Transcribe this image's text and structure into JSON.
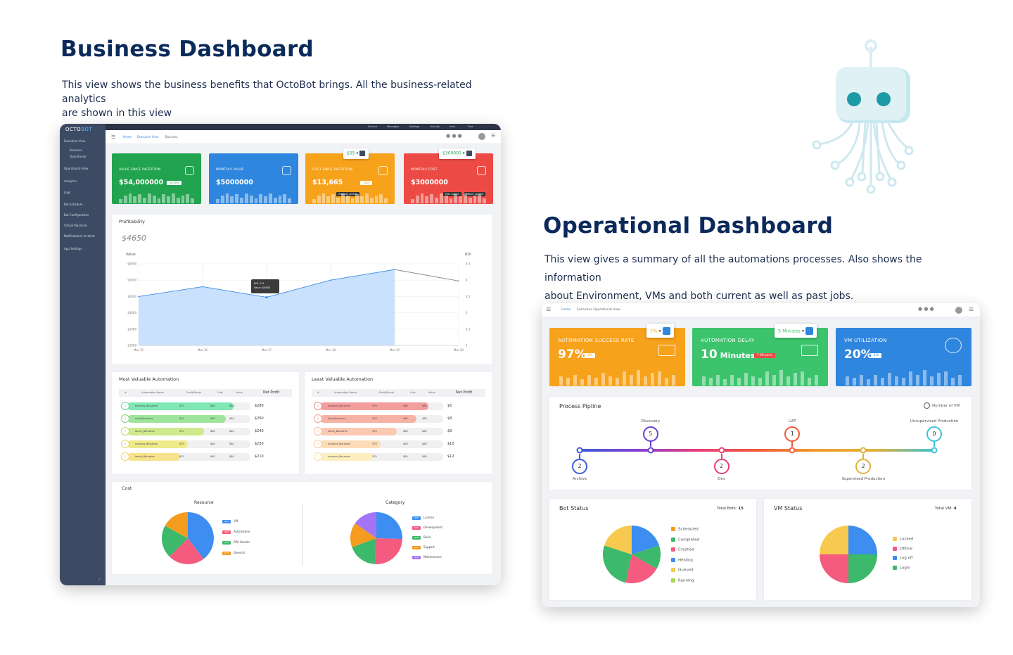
{
  "business": {
    "heading": "Business Dashboard",
    "description_line1": "This view shows the business benefits that OctoBot brings. All the business-related analytics",
    "description_line2": "are shown in this view"
  },
  "operational": {
    "heading": "Operational Dashboard",
    "description_line1": "This view gives a summary of all the automations processes. Also shows the information",
    "description_line2": "about Environment, VMs and both current as well as past jobs."
  },
  "app": {
    "logo_left": "OCTO",
    "logo_right": "BOT",
    "sidebar": [
      {
        "label": "Executive View"
      },
      {
        "label": "Business"
      },
      {
        "label": "Operational"
      },
      {
        "label": "Operational View"
      },
      {
        "label": "Analytics"
      },
      {
        "label": "Logs"
      },
      {
        "label": "Bot Schedule"
      },
      {
        "label": "Bot Configuration"
      },
      {
        "label": "Virtual Machines"
      },
      {
        "label": "Notifications/ Incident"
      },
      {
        "label": "App Settings"
      }
    ],
    "topbar": [
      "Service",
      "Messages",
      "Settings",
      "Activity",
      "Help",
      "Find"
    ],
    "breadcrumb": [
      "Home",
      "Executive View",
      "Business"
    ]
  },
  "biz_kpis": [
    {
      "label": "VALUE SINCE INCEPTION",
      "value": "$54,000000",
      "color": "#22a34f",
      "badge": "20.55%",
      "icon": "chart-up-icon"
    },
    {
      "label": "MONTHLY VALUE",
      "value": "$5000000",
      "color": "#2f86de",
      "icon": "upload-chart-icon"
    },
    {
      "label": "COST SINCE INCEPTION",
      "value": "$13,665",
      "color": "#f7a21b",
      "badge": "2469",
      "popup": "$55",
      "tooltip": "Instantt -$2500",
      "icon": "dollar-icon"
    },
    {
      "label": "MONTHLY COST",
      "value": "$3000000",
      "color": "#ec4b45",
      "popup": "$300000",
      "tooltip": "March -$2500",
      "tooltip2": "Feb -$2500",
      "icon": "cost-icon"
    }
  ],
  "profitability": {
    "title": "Profitability",
    "amount": "$4650",
    "left_axis": "Value",
    "right_axis": "ROI",
    "tooltip_line1": "ROI: 2.5",
    "tooltip_line2": "Value: $4800"
  },
  "chart_data": {
    "type": "area",
    "categories": [
      "Mar 15",
      "Mar 16",
      "Mar 17",
      "Mar 18",
      "Mar 19",
      "Mar 20"
    ],
    "y_ticks": [
      "$6000",
      "$5000",
      "$4000",
      "$3000",
      "$2000",
      "$1000"
    ],
    "y2_ticks": [
      "4.5",
      "4",
      "3.5",
      "3",
      "2.5",
      "2"
    ],
    "ylim": [
      1000,
      6000
    ],
    "series": [
      {
        "values": [
          4000,
          4600,
          3950,
          5000,
          5650,
          4950
        ]
      }
    ]
  },
  "most_valuable": {
    "title": "Most Valuable Automation",
    "headers": [
      "#",
      "Automation Name",
      "Profit/Month",
      "Cost",
      "Value",
      "Net Profit"
    ],
    "rows": [
      {
        "n": "1",
        "name": "Invoices_Bot.atmx",
        "pm": "$70",
        "cost": "$80",
        "value": "$80",
        "net": "$280",
        "fill": 0.86,
        "color": "#7ee8b4",
        "ring": "#63d49c"
      },
      {
        "n": "2",
        "name": "mail_Bot.atmx",
        "pm": "$70",
        "cost": "$80",
        "value": "$80",
        "net": "$260",
        "fill": 0.8,
        "color": "#9ee59b",
        "ring": "#86d37f"
      },
      {
        "n": "3",
        "name": "lorem_Bot.atmx",
        "pm": "$70",
        "cost": "$80",
        "value": "$80",
        "net": "$240",
        "fill": 0.62,
        "color": "#cfea8d",
        "ring": "#b9da6d"
      },
      {
        "n": "4",
        "name": "Invoices_Bot.atmx",
        "pm": "$70",
        "cost": "$80",
        "value": "$80",
        "net": "$230",
        "fill": 0.49,
        "color": "#eeea8a",
        "ring": "#e1d85c"
      },
      {
        "n": "5",
        "name": "lorem_Bot.atmx",
        "pm": "$70",
        "cost": "$80",
        "value": "$80",
        "net": "$210",
        "fill": 0.43,
        "color": "#f6e28c",
        "ring": "#ead26c"
      }
    ]
  },
  "least_valuable": {
    "title": "Least Valuable Automation",
    "headers": [
      "#",
      "Automation Name",
      "Profit/Month",
      "Cost",
      "Value",
      "Net Profit"
    ],
    "rows": [
      {
        "n": "1",
        "name": "Invoices_Bot.atmx",
        "pm": "$70",
        "cost": "$80",
        "value": "$80",
        "net": "$5",
        "fill": 0.88,
        "color": "#f49d9d",
        "ring": "#ef8a8a"
      },
      {
        "n": "2",
        "name": "mail_Bot.atmx",
        "pm": "$70",
        "cost": "$80",
        "value": "$80",
        "net": "$8",
        "fill": 0.78,
        "color": "#f7b2a6",
        "ring": "#f29f92"
      },
      {
        "n": "3",
        "name": "lorem_Bot.atmx",
        "pm": "$70",
        "cost": "$80",
        "value": "$80",
        "net": "$9",
        "fill": 0.62,
        "color": "#fbc9b1",
        "ring": "#f6b698"
      },
      {
        "n": "4",
        "name": "Invoices_Bot.atmx",
        "pm": "$70",
        "cost": "$80",
        "value": "$80",
        "net": "$10",
        "fill": 0.49,
        "color": "#fddcb8",
        "ring": "#f8c99a"
      },
      {
        "n": "5",
        "name": "Invoices_Bot.atmx",
        "pm": "$70",
        "cost": "$80",
        "value": "$80",
        "net": "$12",
        "fill": 0.43,
        "color": "#fdeec0",
        "ring": "#f5df9e"
      }
    ]
  },
  "cost": {
    "title": "Cost",
    "resource": {
      "title": "Resource",
      "slices": [
        {
          "label": "VM",
          "badge": "$35",
          "value": 35,
          "color": "#3d8ef0"
        },
        {
          "label": "Automation",
          "badge": "$20",
          "value": 20,
          "color": "#f45b7e"
        },
        {
          "label": "RPA Vendor",
          "badge": "$18",
          "value": 18,
          "color": "#3cb96a"
        },
        {
          "label": "General",
          "badge": "$15",
          "value": 15,
          "color": "#f59b1e"
        }
      ]
    },
    "category": {
      "title": "Category",
      "slices": [
        {
          "label": "License",
          "badge": "$25",
          "value": 25,
          "color": "#3d8ef0"
        },
        {
          "label": "Development",
          "badge": "$25",
          "value": 25,
          "color": "#f45b7e"
        },
        {
          "label": "Build",
          "badge": "$18",
          "value": 18,
          "color": "#3cb96a"
        },
        {
          "label": "Support",
          "badge": "$15",
          "value": 15,
          "color": "#f59b1e"
        },
        {
          "label": "Maintenance",
          "badge": "$15",
          "value": 15,
          "color": "#a374f5"
        }
      ]
    }
  },
  "ops": {
    "breadcrumb": [
      "Home",
      "Executive Operational View"
    ],
    "kpis": [
      {
        "label": "AUTOMATION SUCCESS RATE",
        "value": "97%",
        "badge": "2%",
        "popup": "7%",
        "color": "#f7a21b",
        "icon": "success-monitor-icon"
      },
      {
        "label": "AUTOMATION DELAY",
        "value": "10",
        "unit": "Minutes",
        "badge": "7 Minutes",
        "popup": "5 Minutes",
        "color": "#3cc46d",
        "icon": "trend-down-icon"
      },
      {
        "label": "VM UTILIZATION",
        "value": "20%",
        "badge": "1%",
        "color": "#2f86de",
        "icon": "speedometer-icon"
      }
    ],
    "pipeline": {
      "title": "Process Pipline",
      "vm_label": "Number of VM",
      "stages": [
        {
          "name": "Archive",
          "count": "2",
          "color": "#3b5bd9",
          "pos": 0.0,
          "side": "below"
        },
        {
          "name": "Discovery",
          "count": "5",
          "color": "#6a3fd1",
          "pos": 0.2,
          "side": "above"
        },
        {
          "name": "Dev",
          "count": "2",
          "color": "#e83e7a",
          "pos": 0.4,
          "side": "below"
        },
        {
          "name": "UAT",
          "count": "1",
          "color": "#ef5a3a",
          "pos": 0.6,
          "side": "above"
        },
        {
          "name": "Supervised Production",
          "count": "2",
          "color": "#e2b13a",
          "pos": 0.8,
          "side": "below"
        },
        {
          "name": "Unsupervised Production",
          "count": "0",
          "color": "#3cc3d6",
          "pos": 1.0,
          "side": "above"
        }
      ]
    },
    "bot_status": {
      "title": "Bot Status",
      "total_label": "Total Bots:",
      "total": "15",
      "slices": [
        {
          "label": "Scheduled",
          "value": 3,
          "color": "#3d8ef0"
        },
        {
          "label": "Completed",
          "value": 2,
          "color": "#3cb96a"
        },
        {
          "label": "Crashed",
          "value": 3,
          "color": "#f45b7e"
        },
        {
          "label": "Healing",
          "value": 4,
          "color": "#3cb96a"
        },
        {
          "label": "Queued",
          "value": 3,
          "color": "#f8c94f"
        },
        {
          "label": "Running",
          "value": 0,
          "color": "#a8d94a"
        }
      ],
      "legend_colors": [
        "#f59b1e",
        "#3cb96a",
        "#f45b7e",
        "#3d8ef0",
        "#f8c94f",
        "#a8d94a"
      ]
    },
    "vm_status": {
      "title": "VM Status",
      "total_label": "Total VM:",
      "total": "4",
      "slices": [
        {
          "label": "Locked",
          "value": 1,
          "color": "#3d8ef0"
        },
        {
          "label": "Offline",
          "value": 1,
          "color": "#3cb96a"
        },
        {
          "label": "Log off",
          "value": 1,
          "color": "#f45b7e"
        },
        {
          "label": "Login",
          "value": 1,
          "color": "#f8c94f"
        }
      ],
      "legend_colors": [
        "#f8c94f",
        "#f45b7e",
        "#3d8ef0",
        "#3cb96a"
      ]
    }
  }
}
